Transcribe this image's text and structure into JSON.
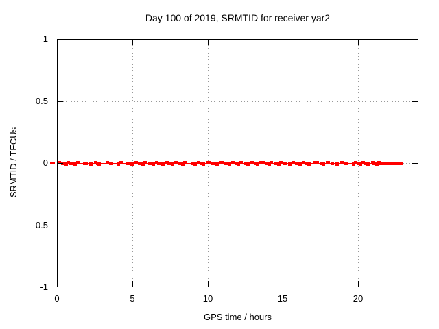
{
  "chart_data": {
    "type": "scatter",
    "title": "Day 100 of 2019, SRMTID for receiver yar2",
    "xlabel": "GPS time / hours",
    "ylabel": "SRMTID / TECUs",
    "xlim": [
      0,
      24
    ],
    "ylim": [
      -1,
      1
    ],
    "xticks": [
      0,
      5,
      10,
      15,
      20
    ],
    "xtick_labels": [
      "0",
      "5",
      "10",
      "15",
      "20"
    ],
    "yticks": [
      1,
      0.5,
      0,
      -0.5,
      -1
    ],
    "ytick_labels": [
      "1",
      "0.5",
      "0",
      "-0.5",
      "-1"
    ],
    "grid": true,
    "grid_style": "dotted",
    "grid_color": "#999999",
    "axis_color": "#000000",
    "background_color": "#ffffff",
    "legend": "none",
    "marker": "filled-square",
    "marker_size_px": 5,
    "marker_color": "#ff0000",
    "series": [
      {
        "name": "SRMTID",
        "y_value": 0,
        "connected_by_line": true,
        "x_runs_hours": [
          [
            0.05,
            0.2
          ],
          [
            0.29,
            0.47
          ],
          [
            0.51,
            0.61
          ],
          [
            0.65,
            0.74
          ],
          [
            0.79,
            1.06
          ],
          [
            1.11,
            1.2
          ],
          [
            1.28,
            1.36
          ],
          [
            1.72,
            2.08
          ],
          [
            2.13,
            2.4
          ],
          [
            2.45,
            2.54
          ],
          [
            2.58,
            2.63
          ],
          [
            2.68,
            2.9
          ],
          [
            3.25,
            3.43
          ],
          [
            3.47,
            3.74
          ],
          [
            3.97,
            4.06
          ],
          [
            4.15,
            4.42
          ],
          [
            4.6,
            4.79
          ],
          [
            4.83,
            5.1
          ],
          [
            5.15,
            5.33
          ],
          [
            5.38,
            5.56
          ],
          [
            5.6,
            5.7
          ],
          [
            5.74,
            6.02
          ],
          [
            6.06,
            6.24
          ],
          [
            6.29,
            6.47
          ],
          [
            6.52,
            6.6
          ],
          [
            6.65,
            6.83
          ],
          [
            6.88,
            7.15
          ],
          [
            7.2,
            7.29
          ],
          [
            7.33,
            7.52
          ],
          [
            7.56,
            7.74
          ],
          [
            7.79,
            7.97
          ],
          [
            8.01,
            8.2
          ],
          [
            8.24,
            8.33
          ],
          [
            8.36,
            8.5
          ],
          [
            8.9,
            9.0
          ],
          [
            9.04,
            9.22
          ],
          [
            9.27,
            9.45
          ],
          [
            9.5,
            9.55
          ],
          [
            9.6,
            9.64
          ],
          [
            9.94,
            10.22
          ],
          [
            10.26,
            10.44
          ],
          [
            10.49,
            10.76
          ],
          [
            10.81,
            11.08
          ],
          [
            11.13,
            11.31
          ],
          [
            11.36,
            11.54
          ],
          [
            11.58,
            11.76
          ],
          [
            11.81,
            11.9
          ],
          [
            11.94,
            12.03
          ],
          [
            12.08,
            12.35
          ],
          [
            12.4,
            12.49
          ],
          [
            12.54,
            12.81
          ],
          [
            12.86,
            13.04
          ],
          [
            13.09,
            13.18
          ],
          [
            13.22,
            13.4
          ],
          [
            13.45,
            13.81
          ],
          [
            13.86,
            13.95
          ],
          [
            14.0,
            14.09
          ],
          [
            14.13,
            14.23
          ],
          [
            14.41,
            14.59
          ],
          [
            14.63,
            14.72
          ],
          [
            14.77,
            14.95
          ],
          [
            15.04,
            15.31
          ],
          [
            15.36,
            15.54
          ],
          [
            15.59,
            15.77
          ],
          [
            15.81,
            15.99
          ],
          [
            16.04,
            16.2
          ],
          [
            16.26,
            16.41
          ],
          [
            16.46,
            16.55
          ],
          [
            16.59,
            16.86
          ],
          [
            17.05,
            17.41
          ],
          [
            17.46,
            17.55
          ],
          [
            17.6,
            17.69
          ],
          [
            17.87,
            18.14
          ],
          [
            18.19,
            18.37
          ],
          [
            18.46,
            18.73
          ],
          [
            18.78,
            19.06
          ],
          [
            19.1,
            19.37
          ],
          [
            19.56,
            19.65
          ],
          [
            19.7,
            19.88
          ],
          [
            19.92,
            20.01
          ],
          [
            20.06,
            20.15
          ],
          [
            20.24,
            20.33
          ],
          [
            20.38,
            20.47
          ],
          [
            20.52,
            20.79
          ],
          [
            20.84,
            20.93
          ],
          [
            20.97,
            21.06
          ],
          [
            21.11,
            21.2
          ],
          [
            21.25,
            21.34
          ],
          [
            21.38,
            22.96
          ]
        ]
      }
    ]
  }
}
